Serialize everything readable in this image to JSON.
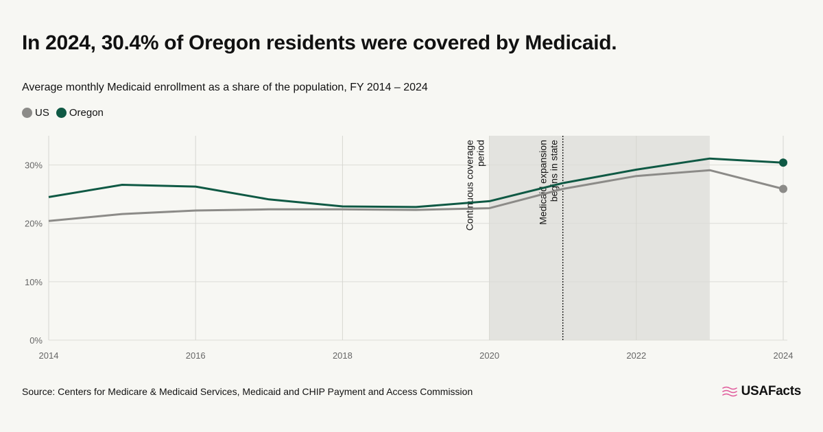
{
  "header": {
    "title": "In 2024, 30.4% of Oregon residents were covered by Medicaid.",
    "subtitle": "Average monthly Medicaid enrollment as a share of the population, FY 2014 – 2024"
  },
  "footer": {
    "source": "Source: Centers for Medicare & Medicaid Services, Medicaid and CHIP Payment and Access Commission",
    "brand": "USAFacts",
    "brand_icon": "us-flag-icon",
    "brand_color": "#e0589a"
  },
  "chart_data": {
    "type": "line",
    "x": [
      2014,
      2015,
      2016,
      2017,
      2018,
      2019,
      2020,
      2021,
      2022,
      2023,
      2024
    ],
    "xticks": [
      2014,
      2016,
      2018,
      2020,
      2022,
      2024
    ],
    "yticks": [
      0,
      10,
      20,
      30
    ],
    "ytick_labels": [
      "0%",
      "10%",
      "20%",
      "30%"
    ],
    "ylim": [
      0,
      35
    ],
    "xlim": [
      2014,
      2024
    ],
    "grid": true,
    "legend_position": "top-left",
    "series": [
      {
        "name": "US",
        "color": "#8c8b88",
        "values": [
          20.4,
          21.6,
          22.2,
          22.4,
          22.4,
          22.3,
          22.6,
          25.9,
          28.1,
          29.1,
          25.9
        ]
      },
      {
        "name": "Oregon",
        "color": "#0f5944",
        "values": [
          24.5,
          26.6,
          26.3,
          24.1,
          22.9,
          22.8,
          23.8,
          26.9,
          29.2,
          31.1,
          30.4
        ]
      }
    ],
    "shaded_region": {
      "from": 2020,
      "to": 2023,
      "label": [
        "Continuous coverage",
        "period"
      ],
      "color": "#e3e3df"
    },
    "event_line": {
      "x": 2021,
      "label": [
        "Medicaid expansion",
        "begins in state"
      ]
    }
  }
}
